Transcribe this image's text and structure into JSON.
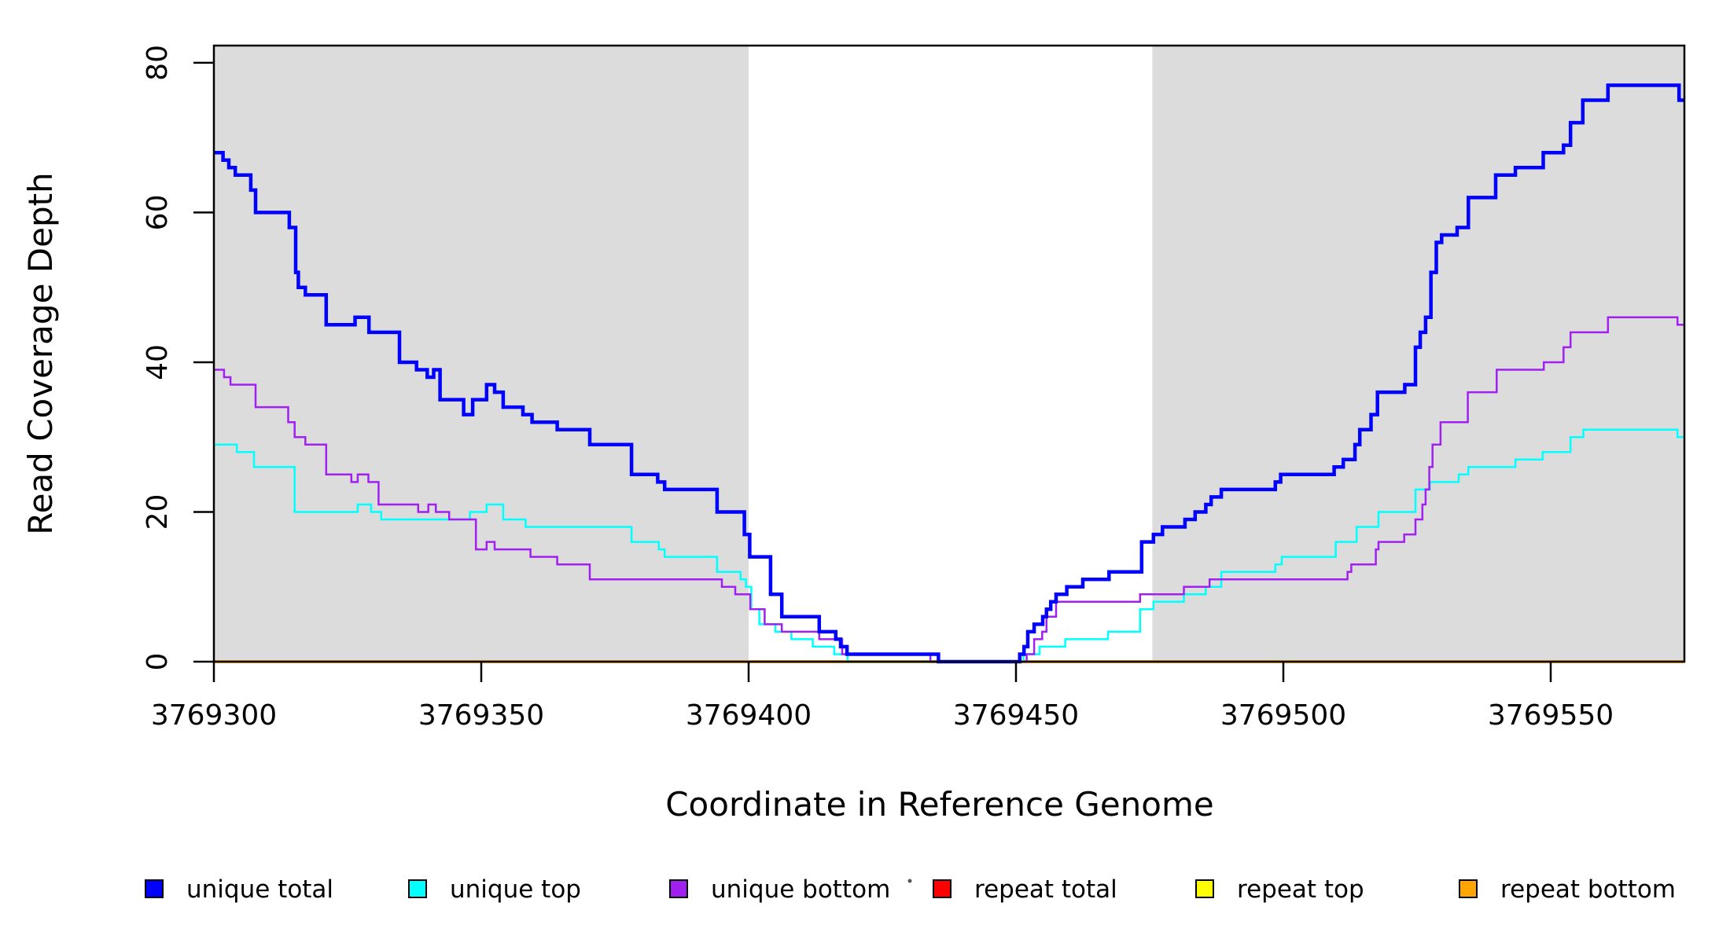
{
  "chart_data": {
    "type": "line",
    "subtype": "step",
    "title": "",
    "xlabel": "Coordinate in Reference Genome",
    "ylabel": "Read Coverage Depth",
    "xlim": [
      3769300,
      3769575
    ],
    "ylim": [
      0,
      82.3
    ],
    "x_ticks": [
      3769300,
      3769350,
      3769400,
      3769450,
      3769500,
      3769550
    ],
    "x_tick_labels": [
      "3769300",
      "3769350",
      "3769400",
      "3769450",
      "3769500",
      "3769550"
    ],
    "y_ticks": [
      0,
      20,
      40,
      60,
      80
    ],
    "y_tick_labels": [
      "0",
      "20",
      "40",
      "60",
      "80"
    ],
    "grid": false,
    "plot_background": "#ffffff",
    "shade_color": "#DCDCDC",
    "shaded_regions": [
      [
        3769300,
        3769400
      ],
      [
        3769475.5,
        3769575
      ]
    ],
    "legend_position": "bottom",
    "legend": [
      {
        "label": "unique total",
        "color": "#0000FF"
      },
      {
        "label": "unique top",
        "color": "#00FFFF"
      },
      {
        "label": "unique bottom",
        "color": "#A020F0"
      },
      {
        "label": "repeat total",
        "color": "#FF0000"
      },
      {
        "label": "repeat top",
        "color": "#FFFF00"
      },
      {
        "label": "repeat bottom",
        "color": "#FFA500"
      }
    ],
    "series": [
      {
        "name": "unique total",
        "color": "#0000FF",
        "width": 4.5,
        "points": [
          [
            3769300,
            68
          ],
          [
            3769301.7,
            67
          ],
          [
            3769302.8,
            66
          ],
          [
            3769304,
            65
          ],
          [
            3769306.9,
            63
          ],
          [
            3769307.8,
            60
          ],
          [
            3769314.1,
            58
          ],
          [
            3769315.3,
            52
          ],
          [
            3769315.8,
            50
          ],
          [
            3769317.1,
            49
          ],
          [
            3769321,
            45
          ],
          [
            3769326.4,
            46
          ],
          [
            3769329,
            44
          ],
          [
            3769334.7,
            40
          ],
          [
            3769337.9,
            39
          ],
          [
            3769339.9,
            38
          ],
          [
            3769341.1,
            39
          ],
          [
            3769342.3,
            35
          ],
          [
            3769346.7,
            33
          ],
          [
            3769348.4,
            35
          ],
          [
            3769351,
            37
          ],
          [
            3769352.5,
            36
          ],
          [
            3769354.1,
            34
          ],
          [
            3769357.8,
            33
          ],
          [
            3769359.5,
            32
          ],
          [
            3769364.2,
            31
          ],
          [
            3769370.3,
            29
          ],
          [
            3769378.1,
            25
          ],
          [
            3769383,
            24
          ],
          [
            3769384.3,
            23
          ],
          [
            3769394.1,
            20
          ],
          [
            3769399.2,
            17
          ],
          [
            3769400.2,
            14
          ],
          [
            3769404.1,
            9
          ],
          [
            3769406.2,
            6
          ],
          [
            3769413.2,
            4
          ],
          [
            3769416.3,
            3
          ],
          [
            3769417.2,
            2
          ],
          [
            3769418.4,
            1
          ],
          [
            3769435.5,
            0
          ],
          [
            3769450.7,
            1
          ],
          [
            3769451.5,
            2
          ],
          [
            3769452.2,
            4
          ],
          [
            3769453.4,
            5
          ],
          [
            3769455,
            6
          ],
          [
            3769455.7,
            7
          ],
          [
            3769456.5,
            8
          ],
          [
            3769457.5,
            9
          ],
          [
            3769459.5,
            10
          ],
          [
            3769462.5,
            11
          ],
          [
            3769467.4,
            12
          ],
          [
            3769473.5,
            16
          ],
          [
            3769475.7,
            17
          ],
          [
            3769477.4,
            18
          ],
          [
            3769481.6,
            19
          ],
          [
            3769483.5,
            20
          ],
          [
            3769485.5,
            21
          ],
          [
            3769486.5,
            22
          ],
          [
            3769488.4,
            23
          ],
          [
            3769498.5,
            24
          ],
          [
            3769499.5,
            25
          ],
          [
            3769509.5,
            26
          ],
          [
            3769511.2,
            27
          ],
          [
            3769513.4,
            29
          ],
          [
            3769514.3,
            31
          ],
          [
            3769516.4,
            33
          ],
          [
            3769517.6,
            36
          ],
          [
            3769522.7,
            37
          ],
          [
            3769524.7,
            42
          ],
          [
            3769525.6,
            44
          ],
          [
            3769526.6,
            46
          ],
          [
            3769527.6,
            52
          ],
          [
            3769528.6,
            56
          ],
          [
            3769529.6,
            57
          ],
          [
            3769532.5,
            58
          ],
          [
            3769534.6,
            62
          ],
          [
            3769539.7,
            65
          ],
          [
            3769543.4,
            66
          ],
          [
            3769548.6,
            68
          ],
          [
            3769552.4,
            69
          ],
          [
            3769553.7,
            72
          ],
          [
            3769556,
            75
          ],
          [
            3769560.7,
            77
          ],
          [
            3769574,
            75
          ],
          [
            3769575,
            75
          ]
        ]
      },
      {
        "name": "unique top",
        "color": "#00FFFF",
        "width": 2.5,
        "points": [
          [
            3769300,
            29
          ],
          [
            3769304.3,
            28
          ],
          [
            3769307.5,
            26
          ],
          [
            3769315.1,
            20
          ],
          [
            3769326.9,
            21
          ],
          [
            3769329.4,
            20
          ],
          [
            3769331.3,
            19
          ],
          [
            3769347.9,
            20
          ],
          [
            3769351,
            21
          ],
          [
            3769354.1,
            19
          ],
          [
            3769358.3,
            18
          ],
          [
            3769378.1,
            16
          ],
          [
            3769383.2,
            15
          ],
          [
            3769384.3,
            14
          ],
          [
            3769394.1,
            12
          ],
          [
            3769398.5,
            11
          ],
          [
            3769399.5,
            10
          ],
          [
            3769400.5,
            7
          ],
          [
            3769402,
            5
          ],
          [
            3769405,
            4
          ],
          [
            3769408,
            3
          ],
          [
            3769412,
            2
          ],
          [
            3769416,
            1
          ],
          [
            3769418.5,
            0
          ],
          [
            3769451.4,
            1
          ],
          [
            3769454.4,
            2
          ],
          [
            3769459.2,
            3
          ],
          [
            3769467.2,
            4
          ],
          [
            3769473.2,
            7
          ],
          [
            3769475.7,
            8
          ],
          [
            3769481.4,
            9
          ],
          [
            3769485.5,
            10
          ],
          [
            3769488.4,
            12
          ],
          [
            3769498.5,
            13
          ],
          [
            3769499.7,
            14
          ],
          [
            3769509.8,
            16
          ],
          [
            3769513.7,
            18
          ],
          [
            3769517.8,
            20
          ],
          [
            3769524.7,
            23
          ],
          [
            3769527.4,
            24
          ],
          [
            3769532.8,
            25
          ],
          [
            3769534.6,
            26
          ],
          [
            3769543.4,
            27
          ],
          [
            3769548.5,
            28
          ],
          [
            3769553.7,
            30
          ],
          [
            3769556.1,
            31
          ],
          [
            3769573.7,
            30
          ],
          [
            3769575,
            30
          ]
        ]
      },
      {
        "name": "unique bottom",
        "color": "#A020F0",
        "width": 2.5,
        "points": [
          [
            3769300,
            39
          ],
          [
            3769301.9,
            38
          ],
          [
            3769303.1,
            37
          ],
          [
            3769307.8,
            34
          ],
          [
            3769313.9,
            32
          ],
          [
            3769315.1,
            30
          ],
          [
            3769317.1,
            29
          ],
          [
            3769321,
            25
          ],
          [
            3769325.7,
            24
          ],
          [
            3769326.9,
            25
          ],
          [
            3769328.9,
            24
          ],
          [
            3769330.8,
            21
          ],
          [
            3769338.2,
            20
          ],
          [
            3769340.1,
            21
          ],
          [
            3769341.5,
            20
          ],
          [
            3769344,
            19
          ],
          [
            3769349,
            15
          ],
          [
            3769351,
            16
          ],
          [
            3769352.5,
            15
          ],
          [
            3769359.2,
            14
          ],
          [
            3769364.2,
            13
          ],
          [
            3769370.3,
            11
          ],
          [
            3769395,
            10
          ],
          [
            3769397.5,
            9
          ],
          [
            3769400.3,
            7
          ],
          [
            3769403,
            5
          ],
          [
            3769406.2,
            4
          ],
          [
            3769413.2,
            3
          ],
          [
            3769417.5,
            1
          ],
          [
            3769434,
            0
          ],
          [
            3769452,
            1
          ],
          [
            3769453.4,
            3
          ],
          [
            3769454.9,
            4
          ],
          [
            3769455.7,
            6
          ],
          [
            3769457.5,
            8
          ],
          [
            3769473.2,
            9
          ],
          [
            3769481.4,
            10
          ],
          [
            3769486.2,
            11
          ],
          [
            3769512,
            12
          ],
          [
            3769512.7,
            13
          ],
          [
            3769517.3,
            15
          ],
          [
            3769517.8,
            16
          ],
          [
            3769522.6,
            17
          ],
          [
            3769524.7,
            19
          ],
          [
            3769526,
            21
          ],
          [
            3769526.6,
            23
          ],
          [
            3769527.3,
            26
          ],
          [
            3769527.9,
            29
          ],
          [
            3769529.4,
            32
          ],
          [
            3769534.5,
            36
          ],
          [
            3769539.9,
            39
          ],
          [
            3769548.7,
            40
          ],
          [
            3769552.4,
            42
          ],
          [
            3769553.7,
            44
          ],
          [
            3769560.7,
            46
          ],
          [
            3769573.7,
            45
          ],
          [
            3769575,
            45
          ]
        ]
      },
      {
        "name": "repeat total",
        "color": "#FF0000",
        "width": 2.5,
        "points": [
          [
            3769300,
            0
          ],
          [
            3769575,
            0
          ]
        ]
      },
      {
        "name": "repeat top",
        "color": "#FFFF00",
        "width": 2.5,
        "points": [
          [
            3769300,
            0
          ],
          [
            3769575,
            0
          ]
        ]
      },
      {
        "name": "repeat bottom",
        "color": "#FFA500",
        "width": 4,
        "points": [
          [
            3769300,
            0
          ],
          [
            3769575,
            0
          ]
        ]
      }
    ]
  }
}
